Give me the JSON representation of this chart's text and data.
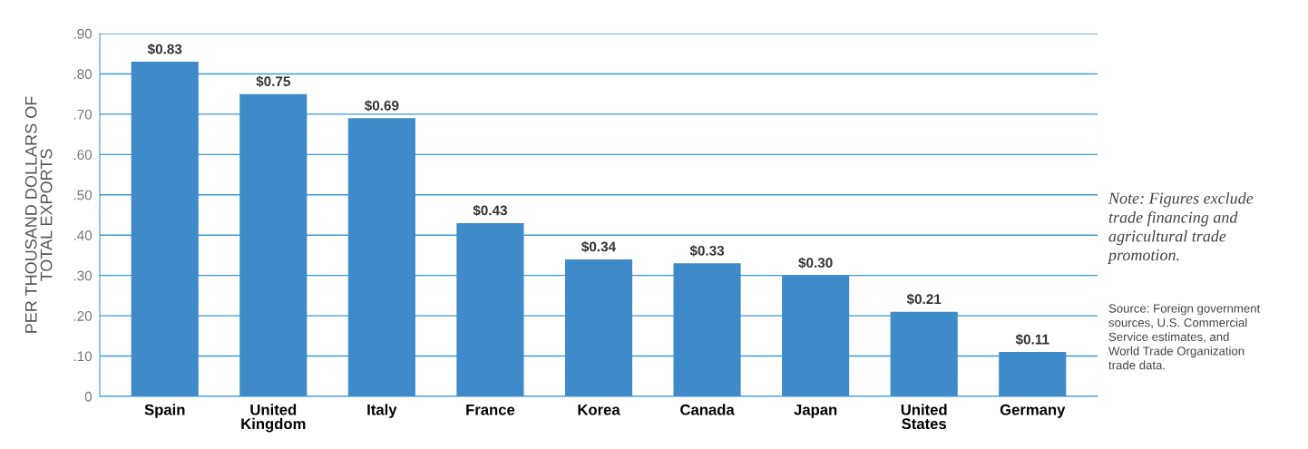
{
  "chart_data": {
    "type": "bar",
    "ylabel": "PER THOUSAND DOLLARS OF\nTOTAL EXPORTS",
    "categories": [
      "Spain",
      "United\nKingdom",
      "Italy",
      "France",
      "Korea",
      "Canada",
      "Japan",
      "United\nStates",
      "Germany"
    ],
    "values": [
      0.83,
      0.75,
      0.69,
      0.43,
      0.34,
      0.33,
      0.3,
      0.21,
      0.11
    ],
    "value_labels": [
      "$0.83",
      "$0.75",
      "$0.69",
      "$0.43",
      "$0.34",
      "$0.33",
      "$0.30",
      "$0.21",
      "$0.11"
    ],
    "color": "#3f8ac8",
    "ylim": [
      0,
      0.9
    ],
    "yticks": [
      {
        "value": 0,
        "label": "0"
      },
      {
        "value": 0.1,
        "label": ".10"
      },
      {
        "value": 0.2,
        "label": ".20"
      },
      {
        "value": 0.3,
        "label": ".30"
      },
      {
        "value": 0.4,
        "label": ".40"
      },
      {
        "value": 0.5,
        "label": ".50"
      },
      {
        "value": 0.6,
        "label": ".60"
      },
      {
        "value": 0.7,
        "label": ".70"
      },
      {
        "value": 0.8,
        "label": ".80"
      },
      {
        "value": 0.9,
        "label": ".90"
      }
    ],
    "grid": "y",
    "annotations": [
      "Note: Figures exclude\ntrade financing and\nagricultural trade\npromotion.",
      "Source: Foreign government\nsources, U.S. Commercial\nService estimates, and\nWorld Trade Organization\ntrade data."
    ]
  }
}
